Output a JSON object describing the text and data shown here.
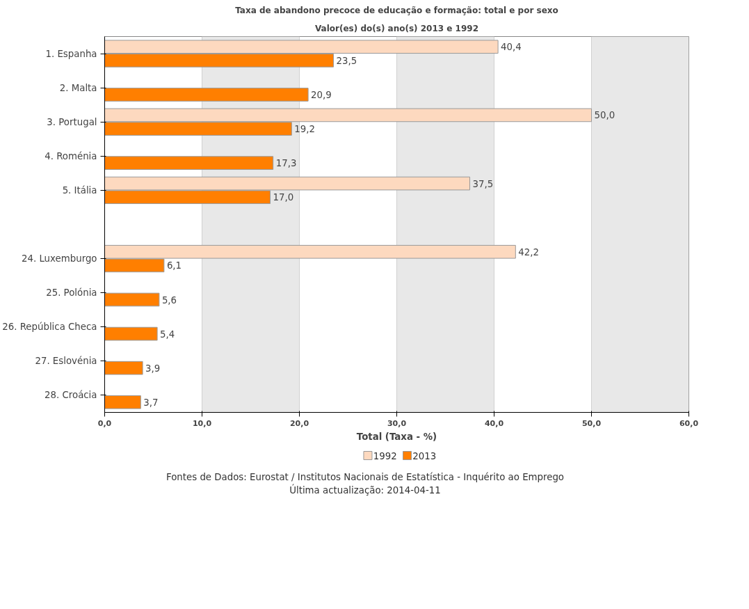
{
  "chart_data": {
    "type": "bar",
    "orientation": "horizontal",
    "title": "Taxa de abandono precoce de educação e formação: total e por sexo",
    "subtitle": "Valor(es) do(s) ano(s) 2013 e 1992",
    "xlabel": "Total (Taxa - %)",
    "categories": [
      "1. Espanha",
      "2. Malta",
      "3. Portugal",
      "4. Roménia",
      "5. Itália",
      null,
      "24. Luxemburgo",
      "25. Polónia",
      "26. República Checa",
      "27. Eslovénia",
      "28. Croácia"
    ],
    "series": [
      {
        "name": "1992",
        "color": "#fdd9bf",
        "values": [
          40.4,
          null,
          50.0,
          null,
          37.5,
          null,
          42.2,
          null,
          null,
          null,
          null
        ],
        "value_labels": [
          "40,4",
          null,
          "50,0",
          null,
          "37,5",
          null,
          "42,2",
          null,
          null,
          null,
          null
        ]
      },
      {
        "name": "2013",
        "color": "#ff7f00",
        "values": [
          23.5,
          20.9,
          19.2,
          17.3,
          17.0,
          null,
          6.1,
          5.6,
          5.4,
          3.9,
          3.7
        ],
        "value_labels": [
          "23,5",
          "20,9",
          "19,2",
          "17,3",
          "17,0",
          null,
          "6,1",
          "5,6",
          "5,4",
          "3,9",
          "3,7"
        ]
      }
    ],
    "xlim": [
      0,
      60
    ],
    "xticks": [
      {
        "value": 0,
        "label": "0,0"
      },
      {
        "value": 10,
        "label": "10,0"
      },
      {
        "value": 20,
        "label": "20,0"
      },
      {
        "value": 30,
        "label": "30,0"
      },
      {
        "value": 40,
        "label": "40,0"
      },
      {
        "value": 50,
        "label": "50,0"
      },
      {
        "value": 60,
        "label": "60,0"
      }
    ],
    "bands": [
      {
        "axis": "x",
        "from": 10,
        "to": 20,
        "color": "#e8e8e8"
      },
      {
        "axis": "x",
        "from": 30,
        "to": 40,
        "color": "#e8e8e8"
      },
      {
        "axis": "x",
        "from": 50,
        "to": 60,
        "color": "#e8e8e8"
      }
    ],
    "grid": "x",
    "legend": "bottom",
    "annotations": [
      "Fontes de Dados: Eurostat / Institutos Nacionais de Estatística - Inquérito ao Emprego",
      "Última actualização: 2014-04-11"
    ]
  }
}
